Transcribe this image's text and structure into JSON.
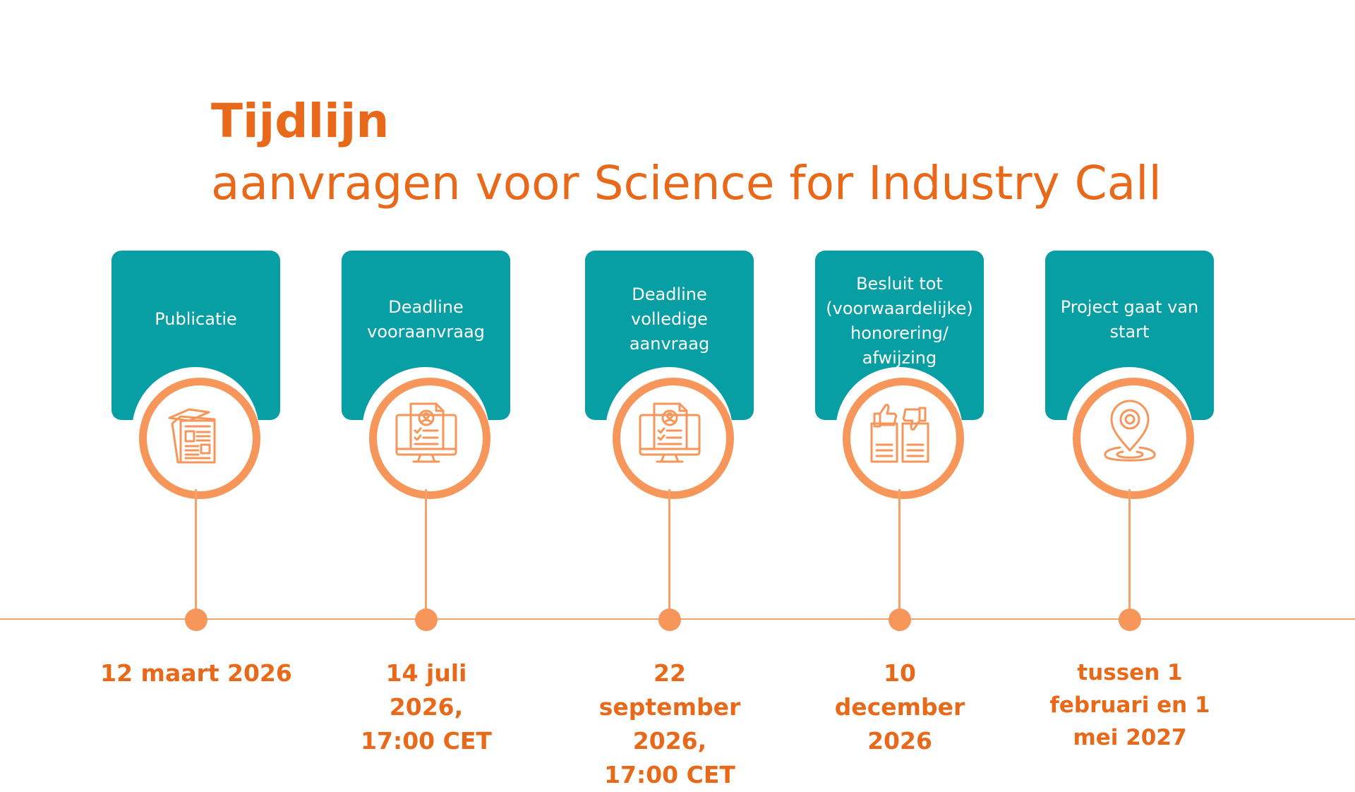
{
  "header": {
    "title": "Tijdlijn",
    "subtitle": "aanvragen voor Science for Industry Call"
  },
  "colors": {
    "accent": "#e8691a",
    "card": "#079ea4",
    "ring": "#f7965a",
    "line": "#f5a26a"
  },
  "steps": [
    {
      "label": "Publicatie",
      "date": "12 maart 2026",
      "icon": "newspaper-icon"
    },
    {
      "label": "Deadline vooraanvraag",
      "date": "14 juli 2026, 17:00 CET",
      "icon": "online-application-icon"
    },
    {
      "label": "Deadline volledige aanvraag",
      "date": "22 september 2026, 17:00 CET",
      "icon": "online-application-icon"
    },
    {
      "label": "Besluit tot (voorwaardelijke) honorering/ afwijzing",
      "date": "10 december 2026",
      "icon": "thumbs-up-down-icon"
    },
    {
      "label": "Project gaat van start",
      "date": "tussen 1 februari en 1 mei 2027",
      "icon": "location-pin-icon"
    }
  ]
}
